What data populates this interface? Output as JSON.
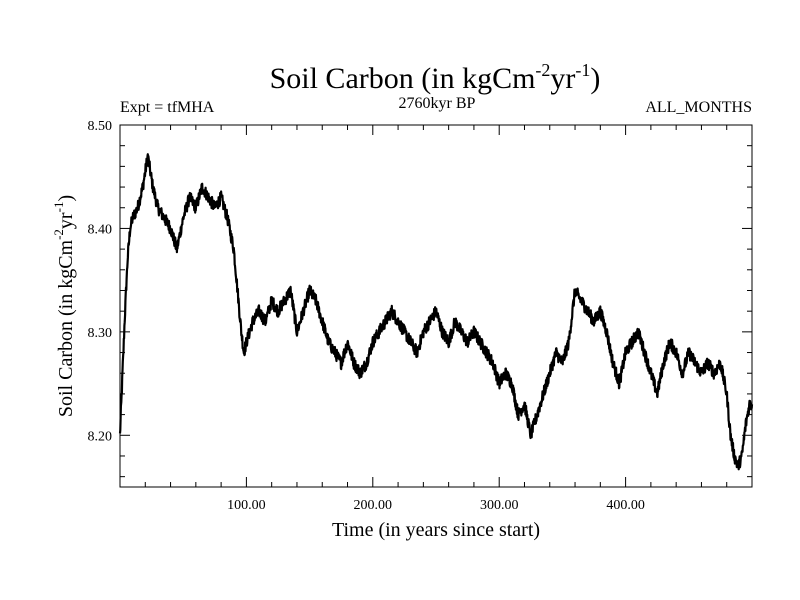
{
  "chart_data": {
    "type": "line",
    "title": "Soil Carbon (in kgCm",
    "title_sup1": "-2",
    "title_mid": "yr",
    "title_sup2": "-1",
    "title_end": ")",
    "subtitle_left": "Expt = tfMHA",
    "subtitle_center": "2760kyr BP",
    "subtitle_right": "ALL_MONTHS",
    "xlabel": "Time (in years since start)",
    "ylabel": "Soil Carbon (in kgCm",
    "ylabel_sup1": "-2",
    "ylabel_mid": "yr",
    "ylabel_sup2": "-1",
    "ylabel_end": ")",
    "xlim": [
      0,
      500
    ],
    "ylim": [
      8.15,
      8.5
    ],
    "x_ticks": [
      100,
      200,
      300,
      400
    ],
    "x_tick_labels": [
      "100.00",
      "200.00",
      "300.00",
      "400.00"
    ],
    "y_ticks": [
      8.2,
      8.3,
      8.4,
      8.5
    ],
    "y_tick_labels": [
      "8.20",
      "8.30",
      "8.40",
      "8.50"
    ],
    "line_color": "#000000",
    "series": [
      {
        "name": "Soil Carbon",
        "x": [
          0,
          2,
          4,
          6,
          8,
          10,
          14,
          18,
          22,
          26,
          30,
          35,
          40,
          45,
          50,
          55,
          60,
          65,
          70,
          75,
          80,
          85,
          90,
          93,
          96,
          98,
          100,
          105,
          110,
          115,
          120,
          125,
          130,
          135,
          140,
          145,
          150,
          155,
          160,
          165,
          170,
          175,
          180,
          185,
          190,
          195,
          200,
          205,
          210,
          215,
          220,
          225,
          230,
          235,
          240,
          245,
          250,
          255,
          260,
          265,
          270,
          275,
          280,
          285,
          290,
          295,
          300,
          305,
          310,
          315,
          320,
          325,
          330,
          335,
          340,
          345,
          350,
          355,
          360,
          365,
          370,
          375,
          380,
          385,
          390,
          395,
          400,
          405,
          410,
          415,
          420,
          425,
          430,
          435,
          440,
          445,
          450,
          455,
          460,
          465,
          470,
          475,
          480,
          483,
          486,
          489,
          492,
          495,
          498,
          500
        ],
        "y": [
          8.2,
          8.26,
          8.32,
          8.37,
          8.4,
          8.41,
          8.42,
          8.44,
          8.47,
          8.44,
          8.42,
          8.41,
          8.4,
          8.38,
          8.41,
          8.43,
          8.42,
          8.44,
          8.43,
          8.42,
          8.43,
          8.41,
          8.38,
          8.34,
          8.3,
          8.28,
          8.29,
          8.31,
          8.32,
          8.31,
          8.33,
          8.32,
          8.33,
          8.34,
          8.3,
          8.32,
          8.34,
          8.33,
          8.31,
          8.29,
          8.28,
          8.27,
          8.29,
          8.27,
          8.26,
          8.27,
          8.29,
          8.3,
          8.31,
          8.32,
          8.31,
          8.3,
          8.29,
          8.28,
          8.3,
          8.31,
          8.32,
          8.3,
          8.29,
          8.31,
          8.3,
          8.29,
          8.3,
          8.29,
          8.28,
          8.27,
          8.25,
          8.26,
          8.25,
          8.22,
          8.23,
          8.2,
          8.22,
          8.24,
          8.26,
          8.28,
          8.27,
          8.29,
          8.34,
          8.33,
          8.32,
          8.31,
          8.32,
          8.3,
          8.27,
          8.25,
          8.28,
          8.29,
          8.3,
          8.28,
          8.26,
          8.24,
          8.27,
          8.29,
          8.28,
          8.26,
          8.28,
          8.27,
          8.26,
          8.27,
          8.26,
          8.27,
          8.24,
          8.2,
          8.18,
          8.17,
          8.18,
          8.21,
          8.23,
          8.23
        ]
      }
    ]
  }
}
